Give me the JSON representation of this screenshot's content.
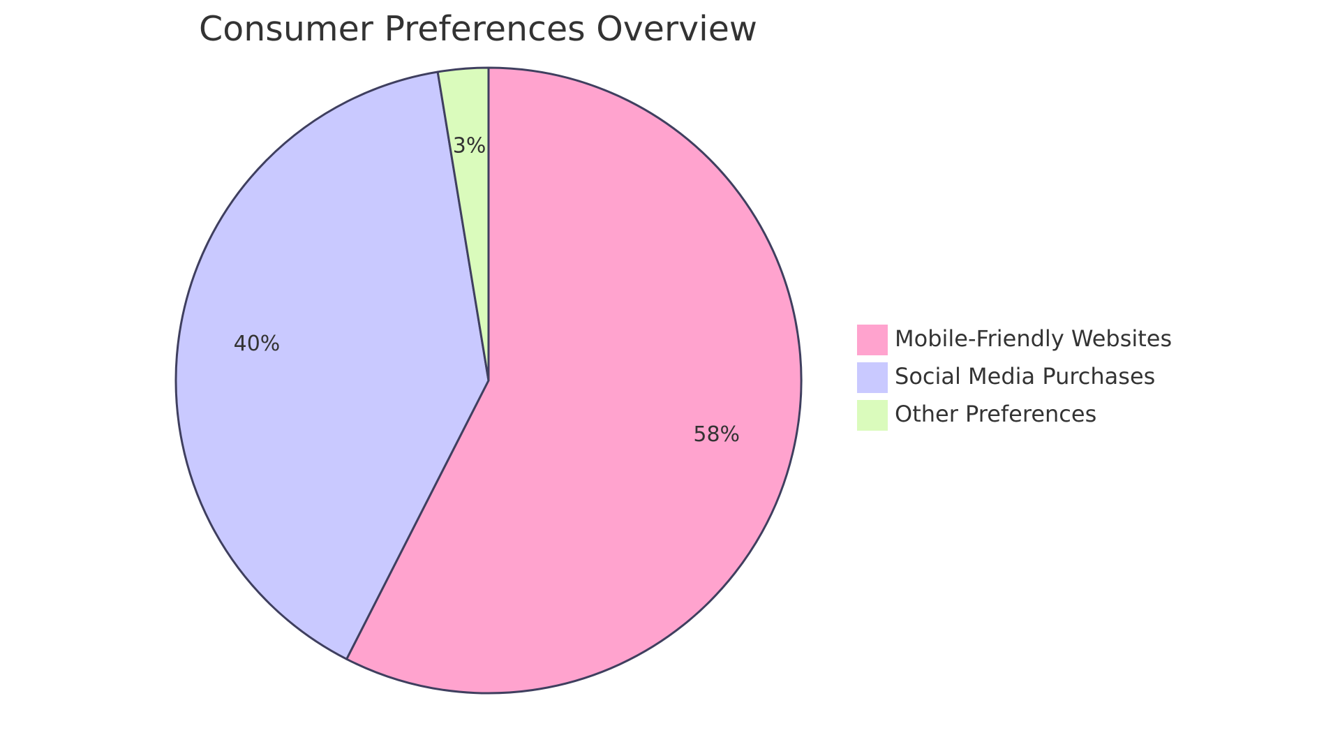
{
  "chart_data": {
    "type": "pie",
    "title": "Consumer Preferences Overview",
    "slices": [
      {
        "name": "Mobile-Friendly Websites",
        "value": 57.5,
        "label": "58%",
        "color": "#FFA3CE"
      },
      {
        "name": "Social Media Purchases",
        "value": 39.9,
        "label": "40%",
        "color": "#C9C9FF"
      },
      {
        "name": "Other Preferences",
        "value": 2.6,
        "label": "3%",
        "color": "#DAFBBC"
      }
    ],
    "start_angle": "12 o'clock",
    "direction": "clockwise",
    "legend_position": "right",
    "stroke_color": "#3F3F5F"
  }
}
